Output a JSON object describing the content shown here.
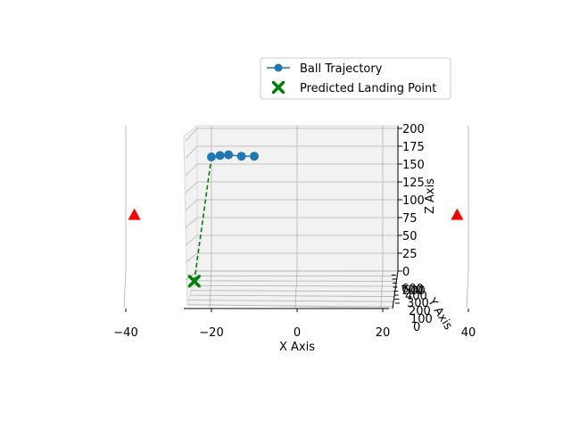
{
  "chart_data": {
    "type": "scatter",
    "projection": "3d",
    "title": "",
    "xlabel": "X Axis",
    "ylabel": "Y Axis",
    "zlabel": "Z Axis",
    "xlim": [
      -50,
      50
    ],
    "zlim": [
      0,
      200
    ],
    "xticks": [
      "−40",
      "−20",
      "0",
      "20",
      "40"
    ],
    "yticks": [
      "0",
      "100",
      "200",
      "300",
      "400",
      "500",
      "600",
      "700"
    ],
    "zticks": [
      "0",
      "25",
      "50",
      "75",
      "100",
      "125",
      "150",
      "175",
      "200"
    ],
    "grid": true,
    "legend": {
      "placement": "upper-right",
      "entries": [
        {
          "label": "Ball Trajectory",
          "color": "#1f77b4",
          "marker": "circle-line"
        },
        {
          "label": "Predicted Landing Point",
          "color": "#008000",
          "marker": "x-filled"
        }
      ]
    },
    "series": [
      {
        "name": "Ball Trajectory",
        "color": "#1f77b4",
        "points": [
          {
            "x": -20,
            "z": 160
          },
          {
            "x": -18,
            "z": 162
          },
          {
            "x": -16,
            "z": 163
          },
          {
            "x": -13,
            "z": 161
          },
          {
            "x": -10,
            "z": 161
          }
        ]
      },
      {
        "name": "Predicted Landing Point",
        "color": "#008000",
        "points": [
          {
            "x": -24,
            "z": -8
          }
        ]
      },
      {
        "name": "",
        "color": "#ff0000",
        "marker": "triangle",
        "points": [
          {
            "x": -38,
            "z": 78
          },
          {
            "x": 38,
            "z": 78
          }
        ]
      }
    ],
    "connector": {
      "style": "dashed",
      "color": "#008000",
      "from": {
        "x": -20,
        "z": 160
      },
      "to": {
        "x": -24,
        "z": -8
      }
    }
  }
}
